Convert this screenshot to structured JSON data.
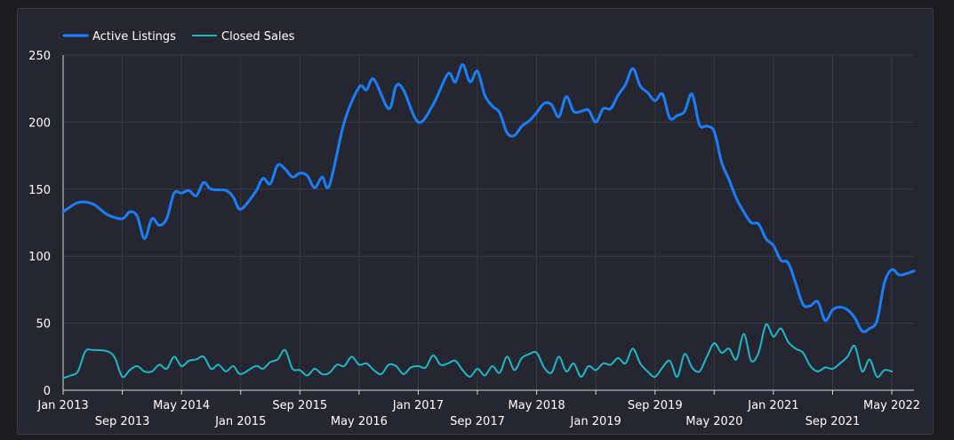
{
  "colors": {
    "background": "#262631",
    "grid": "#3a3a48",
    "axis": "#d8d8e0",
    "text": "#ffffff"
  },
  "chart_data": {
    "type": "line",
    "title": "",
    "xlabel": "",
    "ylabel": "",
    "ylim": [
      0,
      250
    ],
    "yticks": [
      0,
      50,
      100,
      150,
      200,
      250
    ],
    "xlim": [
      "2013-01",
      "2022-08"
    ],
    "grid": true,
    "legend_position": "top-left",
    "x_ticks": [
      {
        "label": "Jan 2013",
        "date": "2013-01",
        "row": 0
      },
      {
        "label": "Sep 2013",
        "date": "2013-09",
        "row": 1
      },
      {
        "label": "May 2014",
        "date": "2014-05",
        "row": 0
      },
      {
        "label": "Jan 2015",
        "date": "2015-01",
        "row": 1
      },
      {
        "label": "Sep 2015",
        "date": "2015-09",
        "row": 0
      },
      {
        "label": "May 2016",
        "date": "2016-05",
        "row": 1
      },
      {
        "label": "Jan 2017",
        "date": "2017-01",
        "row": 0
      },
      {
        "label": "Sep 2017",
        "date": "2017-09",
        "row": 1
      },
      {
        "label": "May 2018",
        "date": "2018-05",
        "row": 0
      },
      {
        "label": "Jan 2019",
        "date": "2019-01",
        "row": 1
      },
      {
        "label": "Sep 2019",
        "date": "2019-09",
        "row": 0
      },
      {
        "label": "May 2020",
        "date": "2020-05",
        "row": 1
      },
      {
        "label": "Jan 2021",
        "date": "2021-01",
        "row": 0
      },
      {
        "label": "Sep 2021",
        "date": "2021-09",
        "row": 1
      },
      {
        "label": "May 2022",
        "date": "2022-05",
        "row": 0
      }
    ],
    "series": [
      {
        "name": "Active Listings",
        "color": "#1a7fff",
        "points": [
          [
            "2013-01",
            133
          ],
          [
            "2013-03",
            140
          ],
          [
            "2013-05",
            139
          ],
          [
            "2013-07",
            131
          ],
          [
            "2013-09",
            128
          ],
          [
            "2013-10",
            133
          ],
          [
            "2013-11",
            130
          ],
          [
            "2013-12",
            113
          ],
          [
            "2014-01",
            128
          ],
          [
            "2014-02",
            123
          ],
          [
            "2014-03",
            128
          ],
          [
            "2014-04",
            147
          ],
          [
            "2014-05",
            147
          ],
          [
            "2014-06",
            149
          ],
          [
            "2014-07",
            145
          ],
          [
            "2014-08",
            155
          ],
          [
            "2014-09",
            150
          ],
          [
            "2014-11",
            149
          ],
          [
            "2014-12",
            144
          ],
          [
            "2015-01",
            135
          ],
          [
            "2015-03",
            148
          ],
          [
            "2015-04",
            158
          ],
          [
            "2015-05",
            154
          ],
          [
            "2015-06",
            168
          ],
          [
            "2015-07",
            165
          ],
          [
            "2015-08",
            159
          ],
          [
            "2015-09",
            162
          ],
          [
            "2015-10",
            160
          ],
          [
            "2015-11",
            151
          ],
          [
            "2015-12",
            159
          ],
          [
            "2016-01",
            153
          ],
          [
            "2016-03",
            200
          ],
          [
            "2016-05",
            226
          ],
          [
            "2016-06",
            224
          ],
          [
            "2016-07",
            232
          ],
          [
            "2016-09",
            210
          ],
          [
            "2016-10",
            227
          ],
          [
            "2016-11",
            224
          ],
          [
            "2017-01",
            200
          ],
          [
            "2017-03",
            213
          ],
          [
            "2017-05",
            236
          ],
          [
            "2017-06",
            230
          ],
          [
            "2017-07",
            243
          ],
          [
            "2017-08",
            230
          ],
          [
            "2017-09",
            238
          ],
          [
            "2017-10",
            220
          ],
          [
            "2017-11",
            212
          ],
          [
            "2017-12",
            207
          ],
          [
            "2018-01",
            192
          ],
          [
            "2018-02",
            190
          ],
          [
            "2018-03",
            197
          ],
          [
            "2018-04",
            201
          ],
          [
            "2018-05",
            207
          ],
          [
            "2018-06",
            214
          ],
          [
            "2018-07",
            213
          ],
          [
            "2018-08",
            204
          ],
          [
            "2018-09",
            219
          ],
          [
            "2018-10",
            208
          ],
          [
            "2018-11",
            208
          ],
          [
            "2018-12",
            209
          ],
          [
            "2019-01",
            200
          ],
          [
            "2019-02",
            210
          ],
          [
            "2019-03",
            210
          ],
          [
            "2019-04",
            220
          ],
          [
            "2019-05",
            228
          ],
          [
            "2019-06",
            240
          ],
          [
            "2019-07",
            227
          ],
          [
            "2019-08",
            222
          ],
          [
            "2019-09",
            216
          ],
          [
            "2019-10",
            221
          ],
          [
            "2019-11",
            203
          ],
          [
            "2019-12",
            205
          ],
          [
            "2020-01",
            208
          ],
          [
            "2020-02",
            221
          ],
          [
            "2020-03",
            198
          ],
          [
            "2020-04",
            197
          ],
          [
            "2020-05",
            193
          ],
          [
            "2020-06",
            170
          ],
          [
            "2020-07",
            157
          ],
          [
            "2020-08",
            143
          ],
          [
            "2020-09",
            133
          ],
          [
            "2020-10",
            125
          ],
          [
            "2020-11",
            124
          ],
          [
            "2020-12",
            113
          ],
          [
            "2021-01",
            108
          ],
          [
            "2021-02",
            97
          ],
          [
            "2021-03",
            95
          ],
          [
            "2021-04",
            80
          ],
          [
            "2021-05",
            64
          ],
          [
            "2021-06",
            63
          ],
          [
            "2021-07",
            66
          ],
          [
            "2021-08",
            52
          ],
          [
            "2021-09",
            60
          ],
          [
            "2021-10",
            62
          ],
          [
            "2021-11",
            60
          ],
          [
            "2021-12",
            54
          ],
          [
            "2022-01",
            44
          ],
          [
            "2022-02",
            46
          ],
          [
            "2022-03",
            52
          ],
          [
            "2022-04",
            80
          ],
          [
            "2022-05",
            90
          ],
          [
            "2022-06",
            86
          ],
          [
            "2022-07",
            87
          ],
          [
            "2022-08",
            89
          ]
        ]
      },
      {
        "name": "Closed Sales",
        "color": "#1bb9c9",
        "points": [
          [
            "2013-01",
            9
          ],
          [
            "2013-02",
            11
          ],
          [
            "2013-03",
            14
          ],
          [
            "2013-04",
            29
          ],
          [
            "2013-05",
            30
          ],
          [
            "2013-07",
            29
          ],
          [
            "2013-08",
            24
          ],
          [
            "2013-09",
            10
          ],
          [
            "2013-10",
            15
          ],
          [
            "2013-11",
            18
          ],
          [
            "2013-12",
            14
          ],
          [
            "2014-01",
            14
          ],
          [
            "2014-02",
            19
          ],
          [
            "2014-03",
            16
          ],
          [
            "2014-04",
            25
          ],
          [
            "2014-05",
            18
          ],
          [
            "2014-06",
            22
          ],
          [
            "2014-07",
            23
          ],
          [
            "2014-08",
            25
          ],
          [
            "2014-09",
            16
          ],
          [
            "2014-10",
            19
          ],
          [
            "2014-11",
            14
          ],
          [
            "2014-12",
            18
          ],
          [
            "2015-01",
            12
          ],
          [
            "2015-03",
            18
          ],
          [
            "2015-04",
            16
          ],
          [
            "2015-05",
            21
          ],
          [
            "2015-06",
            23
          ],
          [
            "2015-07",
            30
          ],
          [
            "2015-08",
            16
          ],
          [
            "2015-09",
            15
          ],
          [
            "2015-10",
            11
          ],
          [
            "2015-11",
            16
          ],
          [
            "2015-12",
            12
          ],
          [
            "2016-01",
            13
          ],
          [
            "2016-02",
            19
          ],
          [
            "2016-03",
            18
          ],
          [
            "2016-04",
            25
          ],
          [
            "2016-05",
            19
          ],
          [
            "2016-06",
            20
          ],
          [
            "2016-07",
            15
          ],
          [
            "2016-08",
            12
          ],
          [
            "2016-09",
            19
          ],
          [
            "2016-10",
            18
          ],
          [
            "2016-11",
            12
          ],
          [
            "2016-12",
            17
          ],
          [
            "2017-01",
            18
          ],
          [
            "2017-02",
            17
          ],
          [
            "2017-03",
            26
          ],
          [
            "2017-04",
            19
          ],
          [
            "2017-05",
            20
          ],
          [
            "2017-06",
            22
          ],
          [
            "2017-07",
            15
          ],
          [
            "2017-08",
            10
          ],
          [
            "2017-09",
            16
          ],
          [
            "2017-10",
            11
          ],
          [
            "2017-11",
            18
          ],
          [
            "2017-12",
            13
          ],
          [
            "2018-01",
            25
          ],
          [
            "2018-02",
            15
          ],
          [
            "2018-03",
            24
          ],
          [
            "2018-04",
            27
          ],
          [
            "2018-05",
            28
          ],
          [
            "2018-06",
            17
          ],
          [
            "2018-07",
            13
          ],
          [
            "2018-08",
            25
          ],
          [
            "2018-09",
            14
          ],
          [
            "2018-10",
            20
          ],
          [
            "2018-11",
            10
          ],
          [
            "2018-12",
            18
          ],
          [
            "2019-01",
            15
          ],
          [
            "2019-02",
            20
          ],
          [
            "2019-03",
            19
          ],
          [
            "2019-04",
            24
          ],
          [
            "2019-05",
            20
          ],
          [
            "2019-06",
            31
          ],
          [
            "2019-07",
            20
          ],
          [
            "2019-08",
            14
          ],
          [
            "2019-09",
            10
          ],
          [
            "2019-10",
            17
          ],
          [
            "2019-11",
            22
          ],
          [
            "2019-12",
            10
          ],
          [
            "2020-01",
            27
          ],
          [
            "2020-02",
            17
          ],
          [
            "2020-03",
            14
          ],
          [
            "2020-04",
            25
          ],
          [
            "2020-05",
            35
          ],
          [
            "2020-06",
            28
          ],
          [
            "2020-07",
            31
          ],
          [
            "2020-08",
            23
          ],
          [
            "2020-09",
            42
          ],
          [
            "2020-10",
            22
          ],
          [
            "2020-11",
            28
          ],
          [
            "2020-12",
            49
          ],
          [
            "2021-01",
            40
          ],
          [
            "2021-02",
            46
          ],
          [
            "2021-03",
            36
          ],
          [
            "2021-04",
            31
          ],
          [
            "2021-05",
            28
          ],
          [
            "2021-06",
            18
          ],
          [
            "2021-07",
            14
          ],
          [
            "2021-08",
            17
          ],
          [
            "2021-09",
            16
          ],
          [
            "2021-10",
            20
          ],
          [
            "2021-11",
            25
          ],
          [
            "2021-12",
            33
          ],
          [
            "2022-01",
            14
          ],
          [
            "2022-02",
            23
          ],
          [
            "2022-03",
            10
          ],
          [
            "2022-04",
            15
          ],
          [
            "2022-05",
            14
          ]
        ]
      }
    ]
  }
}
